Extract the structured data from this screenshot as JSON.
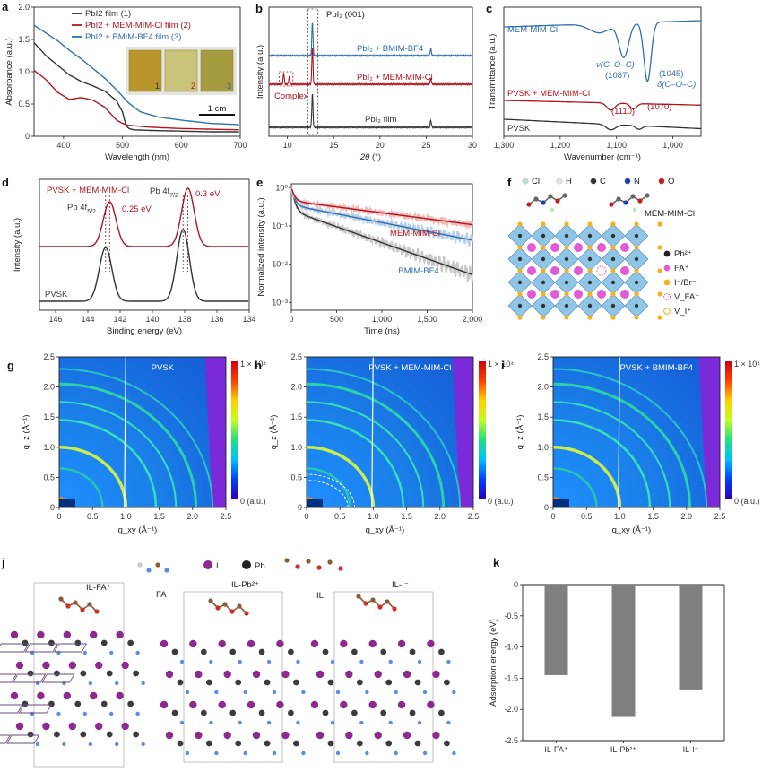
{
  "panels": {
    "a": {
      "letter": "a",
      "chart_data": {
        "type": "line",
        "xlabel": "Wavelength (nm)",
        "ylabel": "Absorbance (a.u.)",
        "xlim": [
          350,
          700
        ],
        "ylim": [
          0,
          2.0
        ],
        "xticks": [
          "400",
          "500",
          "600",
          "700"
        ],
        "yticks": [
          "0",
          "0.5",
          "1.0",
          "1.5",
          "2.0"
        ],
        "series": [
          {
            "name": "PbI2 film (1)",
            "label_main": "PbI",
            "label_sub": "2",
            "label_rest": " film (1)",
            "color": "#333333",
            "x": [
              350,
              370,
              390,
              410,
              430,
              450,
              470,
              490,
              500,
              505,
              510,
              520,
              550,
              600,
              650,
              700
            ],
            "y": [
              1.45,
              1.25,
              1.1,
              0.95,
              0.85,
              0.78,
              0.7,
              0.55,
              0.38,
              0.2,
              0.12,
              0.1,
              0.09,
              0.08,
              0.07,
              0.07
            ]
          },
          {
            "name": "PbI2 + MEM-MIM-Cl film (2)",
            "color": "#b0141c",
            "x": [
              350,
              370,
              390,
              410,
              430,
              450,
              470,
              480,
              490,
              500,
              510,
              550,
              600,
              650,
              700
            ],
            "y": [
              1.02,
              0.88,
              0.68,
              0.57,
              0.6,
              0.56,
              0.45,
              0.35,
              0.25,
              0.2,
              0.17,
              0.14,
              0.12,
              0.11,
              0.1
            ]
          },
          {
            "name": "PbI2 + BMIM-BF4 film (3)",
            "color": "#2f6fb0",
            "x": [
              350,
              370,
              390,
              410,
              430,
              450,
              470,
              490,
              510,
              530,
              560,
              600,
              650,
              700
            ],
            "y": [
              1.72,
              1.6,
              1.48,
              1.33,
              1.2,
              1.05,
              0.9,
              0.72,
              0.52,
              0.38,
              0.3,
              0.25,
              0.2,
              0.18
            ]
          }
        ],
        "inset_labels": [
          "1",
          "2",
          "3"
        ],
        "scale_bar": "1 cm"
      }
    },
    "b": {
      "letter": "b",
      "chart_data": {
        "type": "line",
        "xlabel_italic": "2θ",
        "xlabel_rest": " (°)",
        "ylabel": "Intensity (a.u.)",
        "xlim": [
          8,
          30
        ],
        "xticks": [
          "10",
          "15",
          "20",
          "25",
          "30"
        ],
        "series": [
          {
            "name": "PbI2 + BMIM-BF4",
            "color": "#2f6fb0",
            "peaks": [
              [
                12.7,
                1.0
              ],
              [
                25.5,
                0.2
              ]
            ]
          },
          {
            "name": "PbI2 + MEM-MIM-Cl",
            "color": "#b0141c",
            "peaks": [
              [
                9.6,
                0.3
              ],
              [
                10.2,
                0.2
              ],
              [
                12.7,
                1.0
              ],
              [
                25.5,
                0.15
              ]
            ]
          },
          {
            "name": "PbI2 film",
            "color": "#333333",
            "peaks": [
              [
                12.7,
                1.0
              ],
              [
                25.5,
                0.2
              ]
            ]
          }
        ],
        "annotations": {
          "peak": "PbI2 (001)",
          "complex": "Complex"
        },
        "label_bmim": "PbI₂ + BMIM-BF4",
        "label_mem": "PbI₂ + MEM-MIM-Cl",
        "label_film": "PbI₂ film",
        "label_peak": "PbI₂ (001)"
      }
    },
    "c": {
      "letter": "c",
      "chart_data": {
        "type": "line",
        "xlabel": "Wavenumber (cm⁻¹)",
        "ylabel": "Transmittance (a.u.)",
        "xlim": [
          1300,
          950
        ],
        "xticks": [
          "1,300",
          "1,200",
          "1,100",
          "1,000"
        ],
        "series": [
          {
            "name": "MEM-MIM-Cl",
            "color": "#2f6fb0"
          },
          {
            "name": "PVSK + MEM-MIM-Cl",
            "color": "#b0141c"
          },
          {
            "name": "PVSK",
            "color": "#333333"
          }
        ],
        "annotations": [
          "ν(C–O–C)",
          "(1087)",
          "(1045)",
          "δ(C–O–C)",
          "(1110)",
          "(1070)"
        ]
      }
    },
    "d": {
      "letter": "d",
      "chart_data": {
        "type": "line",
        "xlabel": "Binding energy (eV)",
        "ylabel": "Intensity (a.u.)",
        "xlim": [
          147,
          134
        ],
        "xticks": [
          "146",
          "144",
          "142",
          "140",
          "138",
          "136",
          "134"
        ],
        "series": [
          {
            "name": "PVSK + MEM-MIM-Cl",
            "color": "#b0141c",
            "peaks": [
              142.65,
              137.8
            ]
          },
          {
            "name": "PVSK",
            "color": "#333333",
            "peaks": [
              142.9,
              138.1
            ]
          }
        ],
        "annotations": {
          "pb5": "Pb 4f",
          "pb5sub": "5/2",
          "pb7": "Pb 4f",
          "pb7sub": "7/2",
          "shift1": "0.25 eV",
          "shift2": "0.3 eV"
        }
      }
    },
    "e": {
      "letter": "e",
      "chart_data": {
        "type": "line",
        "xlabel": "Time (ns)",
        "ylabel": "Normalized intensity (a.u.)",
        "xlim": [
          0,
          2000
        ],
        "ylim_log": [
          -3.2,
          0.1
        ],
        "xticks": [
          "0",
          "500",
          "1,000",
          "1,500",
          "2,000"
        ],
        "yticks": [
          "10⁰",
          "10⁻¹",
          "10⁻²",
          "10⁻³"
        ],
        "series": [
          {
            "name": "MEM-MIM-Cl",
            "color": "#b0141c",
            "tau": [
              [
                0.55,
                30
              ],
              [
                0.45,
                1400
              ]
            ]
          },
          {
            "name": "BMIM-BF4",
            "color": "#2f6fb0",
            "tau": [
              [
                0.65,
                30
              ],
              [
                0.35,
                950
              ]
            ]
          },
          {
            "name": "PVSK",
            "color": "#333333",
            "tau": [
              [
                0.75,
                30
              ],
              [
                0.25,
                520
              ]
            ]
          }
        ]
      }
    },
    "f": {
      "letter": "f",
      "legend_top": [
        "Cl",
        "H",
        "C",
        "N",
        "O"
      ],
      "legend_right": [
        "Pb²⁺",
        "FA⁺",
        "I⁻/Br⁻",
        "V_FA⁻",
        "V_I⁺"
      ],
      "mol_label": "MEM-MIM-Cl"
    },
    "giwaxs": [
      {
        "letter": "g",
        "title": "PVSK"
      },
      {
        "letter": "h",
        "title": "PVSK + MEM-MIM-Cl"
      },
      {
        "letter": "i",
        "title": "PVSK + BMIM-BF4"
      }
    ],
    "giwaxs_axes": {
      "xlabel": "q_xy (Å⁻¹)",
      "ylabel": "q_z (Å⁻¹)",
      "xticks": [
        "0",
        "0.5",
        "1.0",
        "1.5",
        "2.0",
        "2.5"
      ],
      "yticks": [
        "0",
        "0.5",
        "1.0",
        "1.5",
        "2.0",
        "2.5"
      ],
      "cbar_top": "1 × 10⁴",
      "cbar_bottom": "0 (a.u.)"
    },
    "j": {
      "letter": "j",
      "labels": [
        "IL-FA⁺",
        "IL-Pb²⁺",
        "IL-I⁻",
        "FA",
        "IL",
        "I",
        "Pb"
      ]
    },
    "k": {
      "letter": "k",
      "chart_data": {
        "type": "bar",
        "categories": [
          "IL-FA⁺",
          "IL-Pb²⁺",
          "IL-I⁻"
        ],
        "values": [
          -1.45,
          -2.12,
          -1.68
        ],
        "ylabel": "Adsorption energy (eV)",
        "ylim": [
          -2.5,
          0
        ],
        "yticks": [
          "0",
          "-0.5",
          "-1.0",
          "-1.5",
          "-2.0",
          "-2.5"
        ],
        "color": "#7f7f7f"
      }
    }
  }
}
